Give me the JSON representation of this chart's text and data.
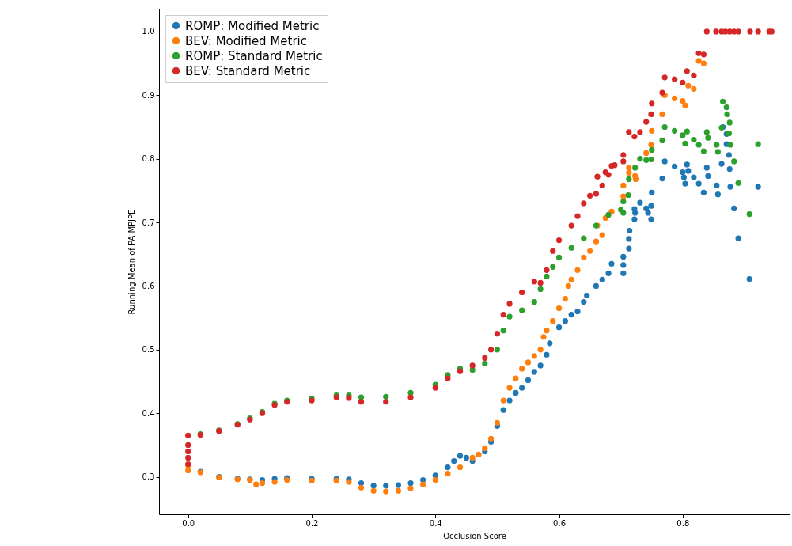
{
  "chart_data": {
    "type": "scatter",
    "xlabel": "Occlusion Score",
    "ylabel": "Running Mean of PA MPJPE",
    "xlim": [
      -0.047,
      0.973
    ],
    "ylim": [
      0.241,
      1.036
    ],
    "xticks": [
      {
        "value": 0,
        "label": "0.0"
      },
      {
        "value": 0.2,
        "label": "0.2"
      },
      {
        "value": 0.4,
        "label": "0.4"
      },
      {
        "value": 0.6,
        "label": "0.6"
      },
      {
        "value": 0.8,
        "label": "0.8"
      }
    ],
    "yticks": [
      {
        "value": 0.3,
        "label": "0.3"
      },
      {
        "value": 0.4,
        "label": "0.4"
      },
      {
        "value": 0.5,
        "label": "0.5"
      },
      {
        "value": 0.6,
        "label": "0.6"
      },
      {
        "value": 0.7,
        "label": "0.7"
      },
      {
        "value": 0.8,
        "label": "0.8"
      },
      {
        "value": 0.9,
        "label": "0.9"
      },
      {
        "value": 1.0,
        "label": "1.0"
      }
    ],
    "legend": "top left",
    "grid": false,
    "marker": "circle",
    "series": [
      {
        "name": "ROMP: Modified Metric",
        "color": "#1f77b4",
        "x": [
          0.02,
          0.05,
          0.08,
          0.1,
          0.12,
          0.14,
          0.16,
          0.2,
          0.24,
          0.26,
          0.28,
          0.3,
          0.32,
          0.34,
          0.36,
          0.38,
          0.4,
          0.42,
          0.43,
          0.44,
          0.45,
          0.46,
          0.48,
          0.49,
          0.5,
          0.51,
          0.52,
          0.53,
          0.54,
          0.55,
          0.56,
          0.57,
          0.58,
          0.585,
          0.6,
          0.61,
          0.62,
          0.63,
          0.64,
          0.645,
          0.66,
          0.67,
          0.68,
          0.685,
          0.704,
          0.704,
          0.704,
          0.713,
          0.713,
          0.714,
          0.722,
          0.723,
          0.722,
          0.731,
          0.741,
          0.744,
          0.749,
          0.749,
          0.75,
          0.767,
          0.771,
          0.787,
          0.8,
          0.802,
          0.804,
          0.807,
          0.809,
          0.818,
          0.826,
          0.834,
          0.839,
          0.841,
          0.855,
          0.857,
          0.863,
          0.865,
          0.871,
          0.871,
          0.875,
          0.876,
          0.877,
          0.883,
          0.89,
          0.908,
          0.922
        ],
        "values": [
          0.308,
          0.3,
          0.297,
          0.296,
          0.295,
          0.297,
          0.298,
          0.297,
          0.297,
          0.296,
          0.29,
          0.286,
          0.286,
          0.287,
          0.29,
          0.295,
          0.302,
          0.315,
          0.325,
          0.333,
          0.33,
          0.325,
          0.34,
          0.355,
          0.38,
          0.405,
          0.42,
          0.432,
          0.44,
          0.452,
          0.465,
          0.475,
          0.492,
          0.51,
          0.535,
          0.545,
          0.555,
          0.56,
          0.575,
          0.585,
          0.6,
          0.61,
          0.62,
          0.635,
          0.646,
          0.633,
          0.62,
          0.659,
          0.674,
          0.687,
          0.705,
          0.715,
          0.721,
          0.731,
          0.722,
          0.715,
          0.705,
          0.726,
          0.747,
          0.769,
          0.796,
          0.788,
          0.779,
          0.771,
          0.761,
          0.791,
          0.781,
          0.771,
          0.761,
          0.747,
          0.786,
          0.773,
          0.758,
          0.744,
          0.792,
          0.85,
          0.839,
          0.823,
          0.806,
          0.784,
          0.756,
          0.722,
          0.675,
          0.611,
          0.756
        ]
      },
      {
        "name": "BEV: Modified Metric",
        "color": "#ff7f0e",
        "x": [
          0,
          0,
          0.02,
          0.05,
          0.08,
          0.1,
          0.11,
          0.12,
          0.14,
          0.16,
          0.2,
          0.24,
          0.26,
          0.28,
          0.3,
          0.32,
          0.34,
          0.36,
          0.38,
          0.4,
          0.42,
          0.44,
          0.46,
          0.47,
          0.48,
          0.49,
          0.5,
          0.51,
          0.52,
          0.53,
          0.54,
          0.55,
          0.56,
          0.57,
          0.575,
          0.58,
          0.59,
          0.6,
          0.61,
          0.615,
          0.62,
          0.63,
          0.64,
          0.65,
          0.66,
          0.662,
          0.67,
          0.675,
          0.685,
          0.704,
          0.704,
          0.713,
          0.713,
          0.723,
          0.724,
          0.741,
          0.749,
          0.75,
          0.767,
          0.771,
          0.787,
          0.8,
          0.804,
          0.809,
          0.818,
          0.826,
          0.834
        ],
        "values": [
          0.31,
          0.318,
          0.307,
          0.299,
          0.296,
          0.295,
          0.288,
          0.29,
          0.292,
          0.295,
          0.294,
          0.294,
          0.292,
          0.283,
          0.278,
          0.277,
          0.278,
          0.282,
          0.288,
          0.295,
          0.305,
          0.315,
          0.33,
          0.335,
          0.345,
          0.36,
          0.385,
          0.42,
          0.44,
          0.455,
          0.47,
          0.48,
          0.49,
          0.5,
          0.52,
          0.53,
          0.545,
          0.565,
          0.58,
          0.6,
          0.61,
          0.625,
          0.645,
          0.655,
          0.67,
          0.695,
          0.68,
          0.707,
          0.717,
          0.758,
          0.741,
          0.786,
          0.778,
          0.773,
          0.768,
          0.809,
          0.822,
          0.844,
          0.87,
          0.9,
          0.895,
          0.891,
          0.884,
          0.915,
          0.91,
          0.954,
          0.95
        ]
      },
      {
        "name": "ROMP: Standard Metric",
        "color": "#2ca02c",
        "x": [
          0.02,
          0.05,
          0.08,
          0.1,
          0.12,
          0.14,
          0.16,
          0.2,
          0.24,
          0.26,
          0.28,
          0.32,
          0.36,
          0.4,
          0.42,
          0.44,
          0.46,
          0.48,
          0.5,
          0.51,
          0.52,
          0.54,
          0.56,
          0.57,
          0.58,
          0.59,
          0.6,
          0.62,
          0.64,
          0.66,
          0.68,
          0.7,
          0.704,
          0.704,
          0.712,
          0.713,
          0.723,
          0.731,
          0.741,
          0.749,
          0.75,
          0.767,
          0.771,
          0.787,
          0.8,
          0.807,
          0.804,
          0.818,
          0.826,
          0.834,
          0.839,
          0.841,
          0.855,
          0.857,
          0.863,
          0.865,
          0.871,
          0.872,
          0.876,
          0.875,
          0.877,
          0.883,
          0.89,
          0.908,
          0.922
        ],
        "values": [
          0.367,
          0.373,
          0.383,
          0.392,
          0.402,
          0.415,
          0.42,
          0.423,
          0.428,
          0.428,
          0.425,
          0.426,
          0.432,
          0.445,
          0.46,
          0.47,
          0.468,
          0.478,
          0.5,
          0.53,
          0.552,
          0.562,
          0.575,
          0.595,
          0.615,
          0.63,
          0.645,
          0.66,
          0.675,
          0.695,
          0.712,
          0.72,
          0.715,
          0.733,
          0.743,
          0.768,
          0.786,
          0.8,
          0.798,
          0.799,
          0.814,
          0.829,
          0.85,
          0.844,
          0.837,
          0.843,
          0.824,
          0.83,
          0.822,
          0.812,
          0.842,
          0.833,
          0.822,
          0.811,
          0.849,
          0.89,
          0.881,
          0.87,
          0.857,
          0.84,
          0.822,
          0.796,
          0.762,
          0.713,
          0.823
        ]
      },
      {
        "name": "BEV: Standard Metric",
        "color": "#d62728",
        "x": [
          0,
          0,
          0,
          0,
          0,
          0.02,
          0.05,
          0.08,
          0.1,
          0.12,
          0.14,
          0.16,
          0.2,
          0.24,
          0.26,
          0.28,
          0.32,
          0.36,
          0.4,
          0.42,
          0.44,
          0.46,
          0.48,
          0.49,
          0.5,
          0.51,
          0.52,
          0.54,
          0.56,
          0.57,
          0.58,
          0.59,
          0.6,
          0.62,
          0.63,
          0.64,
          0.65,
          0.66,
          0.662,
          0.67,
          0.675,
          0.68,
          0.685,
          0.69,
          0.704,
          0.704,
          0.713,
          0.722,
          0.731,
          0.741,
          0.749,
          0.75,
          0.767,
          0.771,
          0.787,
          0.8,
          0.807,
          0.818,
          0.826,
          0.834,
          0.839,
          0.854,
          0.863,
          0.869,
          0.876,
          0.883,
          0.89,
          0.909,
          0.922,
          0.94,
          0.944
        ],
        "values": [
          0.32,
          0.33,
          0.34,
          0.35,
          0.365,
          0.366,
          0.372,
          0.382,
          0.39,
          0.4,
          0.413,
          0.418,
          0.42,
          0.425,
          0.424,
          0.418,
          0.418,
          0.425,
          0.44,
          0.455,
          0.466,
          0.475,
          0.487,
          0.5,
          0.525,
          0.555,
          0.572,
          0.59,
          0.607,
          0.605,
          0.625,
          0.655,
          0.672,
          0.695,
          0.71,
          0.73,
          0.742,
          0.745,
          0.772,
          0.758,
          0.779,
          0.775,
          0.789,
          0.79,
          0.806,
          0.796,
          0.842,
          0.835,
          0.842,
          0.858,
          0.87,
          0.887,
          0.904,
          0.928,
          0.925,
          0.92,
          0.938,
          0.931,
          0.966,
          0.964,
          1.0,
          1.0,
          1.0,
          1.0,
          1.0,
          1.0,
          1.0,
          1.0,
          1.0,
          1.0,
          1.0
        ]
      }
    ]
  }
}
